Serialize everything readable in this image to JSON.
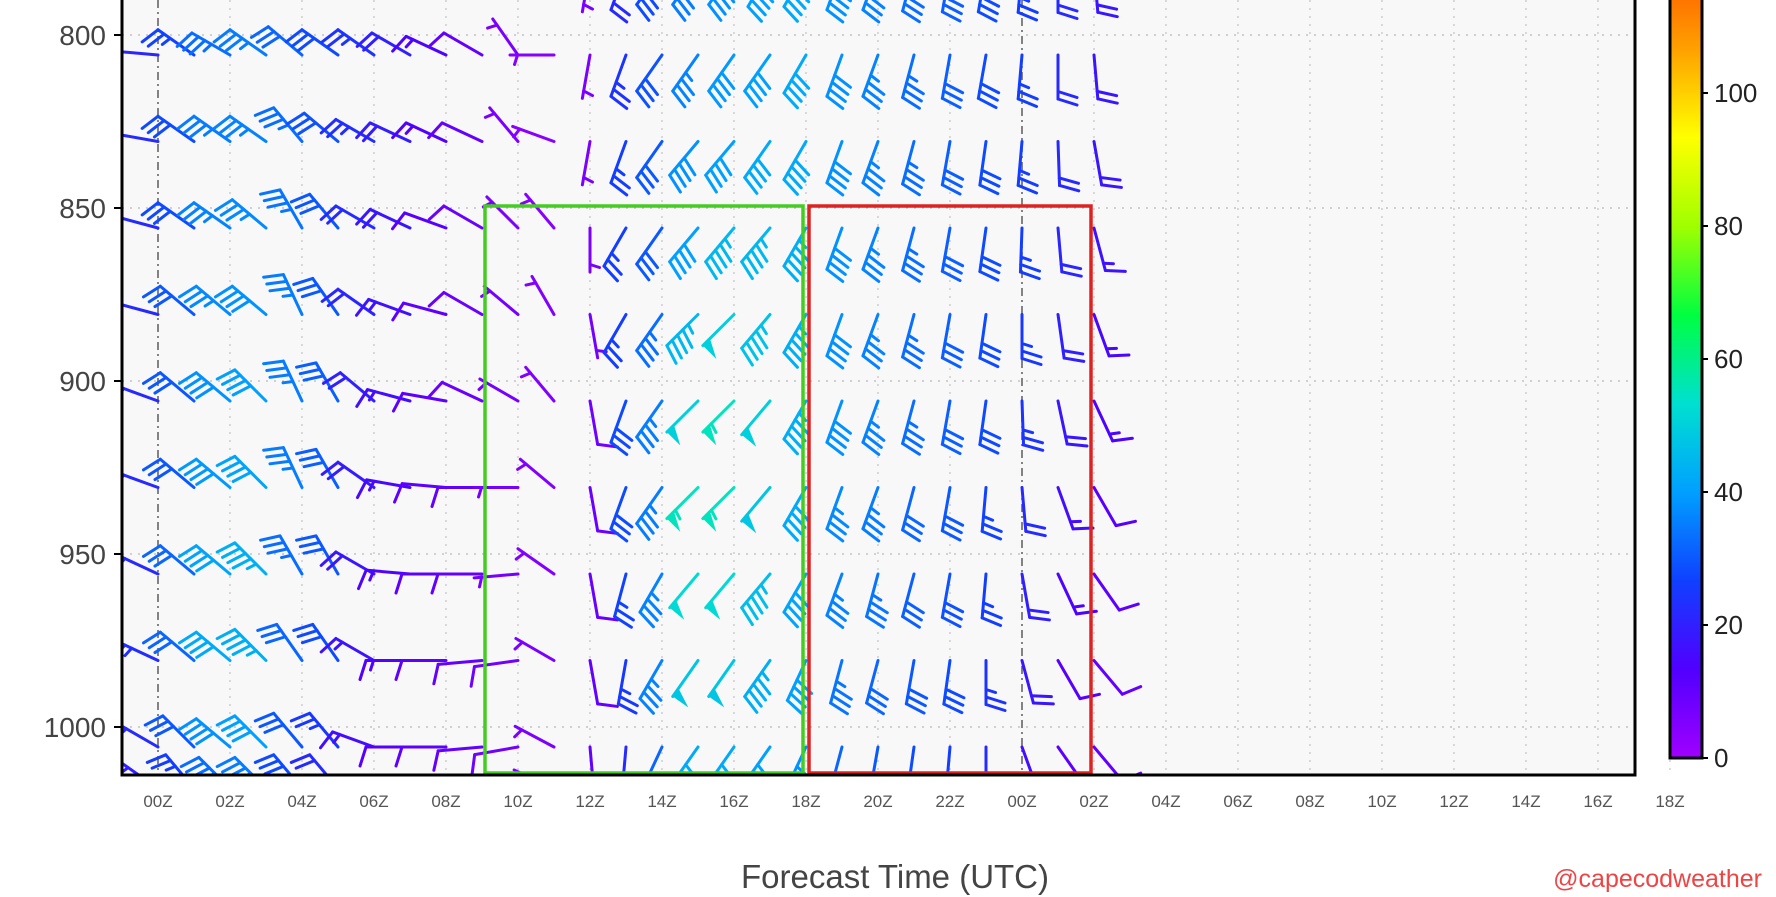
{
  "chart_data": {
    "type": "wind barb time-height",
    "x_axis": {
      "label": "Forecast Time (UTC)",
      "ticks": [
        "00Z",
        "02Z",
        "04Z",
        "06Z",
        "08Z",
        "10Z",
        "12Z",
        "14Z",
        "16Z",
        "18Z",
        "20Z",
        "22Z",
        "00Z",
        "02Z",
        "04Z",
        "06Z",
        "08Z",
        "10Z",
        "12Z",
        "14Z",
        "16Z",
        "18Z"
      ]
    },
    "y_axis": {
      "ticks": [
        "800",
        "850",
        "900",
        "950",
        "1000"
      ],
      "visible_range": [
        770,
        1010
      ],
      "barb_levels": [
        775,
        800,
        825,
        850,
        875,
        900,
        925,
        950,
        975,
        1000,
        1012
      ]
    },
    "colorbar": {
      "ticks": [
        "0",
        "20",
        "40",
        "60",
        "80",
        "100"
      ],
      "range": [
        0,
        120
      ],
      "colors": [
        "#a000ff",
        "#5000ff",
        "#1040ff",
        "#00a0ff",
        "#00e0d0",
        "#00ff40",
        "#a0ff00",
        "#ffff00",
        "#ffa000",
        "#ff5000"
      ]
    },
    "grid": true,
    "highlight_boxes": [
      {
        "color": "#44cc22",
        "time_start": "09Z",
        "time_end": "18Z",
        "pressure_top": 850,
        "pressure_bottom": 1012
      },
      {
        "color": "#dd2222",
        "time_start": "18Z",
        "time_end": "02Z",
        "pressure_top": 850,
        "pressure_bottom": 1012
      }
    ],
    "wind_profiles": [
      {
        "time": "23Z",
        "dir": [
          250,
          260,
          265,
          270,
          275,
          280,
          285,
          290,
          295,
          300,
          300
        ],
        "speed": [
          18,
          18,
          17,
          17,
          16,
          16,
          15,
          15,
          14,
          13,
          10
        ]
      },
      {
        "time": "00Z",
        "dir": [
          270,
          275,
          280,
          285,
          285,
          290,
          290,
          295,
          295,
          300,
          305
        ],
        "speed": [
          20,
          21,
          22,
          22,
          22,
          22,
          22,
          22,
          23,
          22,
          20
        ]
      },
      {
        "time": "01Z",
        "dir": [
          300,
          305,
          305,
          305,
          310,
          310,
          310,
          310,
          310,
          315,
          320
        ],
        "speed": [
          25,
          27,
          28,
          28,
          30,
          30,
          30,
          32,
          32,
          30,
          26
        ]
      },
      {
        "time": "02Z",
        "dir": [
          300,
          300,
          305,
          305,
          310,
          310,
          310,
          310,
          310,
          310,
          315
        ],
        "speed": [
          31,
          33,
          35,
          36,
          37,
          38,
          39,
          41,
          42,
          38,
          33
        ]
      },
      {
        "time": "03Z",
        "dir": [
          300,
          305,
          305,
          310,
          310,
          315,
          315,
          315,
          315,
          315,
          315
        ],
        "speed": [
          34,
          35,
          36,
          37,
          38,
          40,
          41,
          43,
          43,
          40,
          35
        ]
      },
      {
        "time": "04Z",
        "dir": [
          305,
          310,
          320,
          330,
          335,
          335,
          335,
          330,
          325,
          320,
          320
        ],
        "speed": [
          31,
          32,
          33,
          34,
          35,
          35,
          35,
          33,
          32,
          30,
          28
        ]
      },
      {
        "time": "05Z",
        "dir": [
          300,
          305,
          310,
          320,
          325,
          330,
          330,
          330,
          325,
          320,
          320
        ],
        "speed": [
          27,
          28,
          29,
          30,
          30,
          31,
          31,
          30,
          28,
          25,
          22
        ]
      },
      {
        "time": "06Z",
        "dir": [
          300,
          305,
          300,
          300,
          305,
          310,
          305,
          300,
          300,
          290,
          280
        ],
        "speed": [
          24,
          24,
          23,
          22,
          21,
          20,
          19,
          18,
          17,
          16,
          15
        ]
      },
      {
        "time": "07Z",
        "dir": [
          300,
          300,
          295,
          295,
          290,
          285,
          280,
          275,
          270,
          270,
          270
        ],
        "speed": [
          20,
          20,
          19,
          18,
          17,
          16,
          15,
          14,
          13,
          12,
          12
        ]
      },
      {
        "time": "08Z",
        "dir": [
          300,
          295,
          295,
          290,
          285,
          280,
          275,
          270,
          270,
          270,
          270
        ],
        "speed": [
          15,
          14,
          13,
          12,
          11,
          11,
          11,
          11,
          11,
          11,
          10
        ]
      },
      {
        "time": "09Z",
        "dir": [
          300,
          300,
          295,
          300,
          300,
          295,
          270,
          270,
          265,
          265,
          262
        ],
        "speed": [
          10,
          10,
          10,
          9,
          9,
          9,
          10,
          10,
          10,
          10,
          10
        ]
      },
      {
        "time": "10Z",
        "dir": [
          330,
          325,
          320,
          315,
          310,
          300,
          270,
          265,
          262,
          260,
          258
        ],
        "speed": [
          6,
          6,
          6,
          6,
          7,
          7,
          7,
          7,
          8,
          8,
          8
        ]
      },
      {
        "time": "11Z",
        "dir": [
          250,
          270,
          290,
          320,
          330,
          320,
          310,
          305,
          300,
          298,
          295
        ],
        "speed": [
          4,
          4,
          4,
          4,
          5,
          5,
          5,
          5,
          6,
          6,
          6
        ]
      },
      {
        "time": "12Z",
        "dir": [
          190,
          190,
          190,
          180,
          170,
          170,
          170,
          170,
          170,
          175,
          175
        ],
        "speed": [
          6,
          6,
          6,
          6,
          7,
          8,
          9,
          9,
          10,
          10,
          10
        ]
      },
      {
        "time": "13Z",
        "dir": [
          200,
          200,
          200,
          210,
          210,
          200,
          200,
          195,
          190,
          185,
          180
        ],
        "speed": [
          22,
          24,
          26,
          26,
          26,
          28,
          28,
          27,
          25,
          22,
          18
        ]
      },
      {
        "time": "14Z",
        "dir": [
          215,
          215,
          215,
          215,
          215,
          215,
          215,
          210,
          210,
          205,
          200
        ],
        "speed": [
          28,
          29,
          30,
          30,
          33,
          35,
          35,
          36,
          36,
          32,
          28
        ]
      },
      {
        "time": "15Z",
        "dir": [
          215,
          215,
          220,
          220,
          225,
          225,
          225,
          220,
          215,
          215,
          210
        ],
        "speed": [
          35,
          36,
          38,
          40,
          45,
          50,
          55,
          52,
          48,
          42,
          35
        ]
      },
      {
        "time": "16Z",
        "dir": [
          215,
          215,
          220,
          220,
          225,
          225,
          225,
          220,
          215,
          215,
          210
        ],
        "speed": [
          38,
          39,
          40,
          45,
          50,
          55,
          55,
          52,
          48,
          42,
          35
        ]
      },
      {
        "time": "17Z",
        "dir": [
          210,
          215,
          215,
          220,
          220,
          220,
          220,
          220,
          215,
          215,
          210
        ],
        "speed": [
          40,
          40,
          42,
          45,
          47,
          50,
          48,
          46,
          43,
          40,
          35
        ]
      },
      {
        "time": "18Z",
        "dir": [
          210,
          210,
          210,
          210,
          210,
          210,
          210,
          210,
          205,
          205,
          200
        ],
        "speed": [
          42,
          42,
          42,
          43,
          43,
          43,
          42,
          41,
          40,
          38,
          33
        ]
      },
      {
        "time": "19Z",
        "dir": [
          200,
          200,
          200,
          200,
          200,
          200,
          200,
          200,
          195,
          195,
          190
        ],
        "speed": [
          38,
          38,
          38,
          38,
          38,
          38,
          37,
          36,
          34,
          32,
          28
        ]
      },
      {
        "time": "20Z",
        "dir": [
          200,
          200,
          200,
          200,
          200,
          200,
          200,
          195,
          195,
          190,
          188
        ],
        "speed": [
          36,
          36,
          36,
          36,
          36,
          36,
          35,
          34,
          32,
          30,
          26
        ]
      },
      {
        "time": "21Z",
        "dir": [
          195,
          195,
          195,
          195,
          195,
          195,
          195,
          195,
          190,
          188,
          185
        ],
        "speed": [
          33,
          33,
          33,
          33,
          33,
          33,
          32,
          31,
          30,
          28,
          24
        ]
      },
      {
        "time": "22Z",
        "dir": [
          190,
          190,
          190,
          190,
          190,
          190,
          190,
          190,
          188,
          185,
          182
        ],
        "speed": [
          31,
          31,
          31,
          31,
          31,
          31,
          30,
          29,
          28,
          26,
          22
        ]
      },
      {
        "time": "23Z",
        "dir": [
          190,
          190,
          188,
          188,
          188,
          188,
          185,
          185,
          180,
          180,
          178
        ],
        "speed": [
          28,
          28,
          28,
          28,
          28,
          28,
          27,
          26,
          24,
          22,
          18
        ]
      },
      {
        "time": "00Z",
        "dir": [
          185,
          185,
          185,
          182,
          180,
          178,
          175,
          170,
          165,
          160,
          155
        ],
        "speed": [
          26,
          26,
          26,
          26,
          25,
          24,
          22,
          20,
          18,
          16,
          14
        ]
      },
      {
        "time": "01Z",
        "dir": [
          180,
          180,
          178,
          175,
          172,
          168,
          160,
          155,
          150,
          145,
          145
        ],
        "speed": [
          22,
          22,
          22,
          21,
          20,
          18,
          16,
          14,
          12,
          11,
          10
        ]
      },
      {
        "time": "02Z",
        "dir": [
          175,
          175,
          170,
          165,
          160,
          155,
          150,
          145,
          140,
          140,
          140
        ],
        "speed": [
          18,
          18,
          18,
          17,
          15,
          14,
          12,
          11,
          10,
          10,
          8
        ]
      }
    ]
  },
  "credit": "@capecodweather"
}
